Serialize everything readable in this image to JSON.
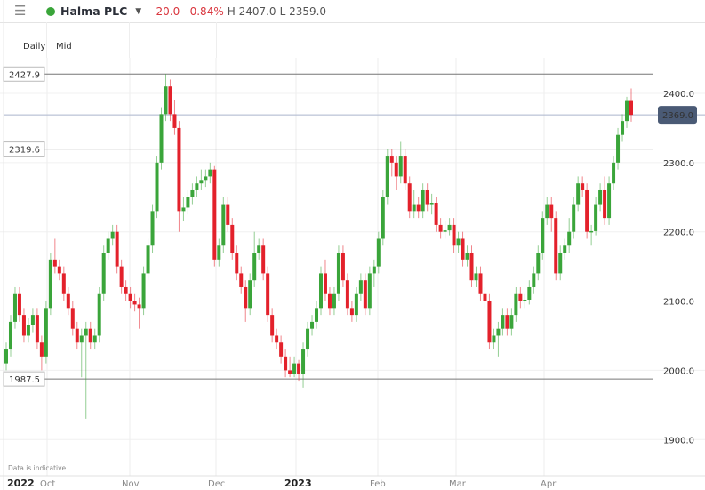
{
  "header": {
    "menu_icon": "hamburger-icon",
    "status_color": "#3aa53a",
    "instrument": "Halma PLC",
    "dropdown_icon": "caret-down-icon",
    "change": "-20.0",
    "change_pct": "-0.84%",
    "high": "H 2407.0",
    "low": "L 2359.0"
  },
  "toolbar": {
    "interval": "Daily",
    "price_type": "Mid"
  },
  "footer_note": "Data is indicative",
  "colors": {
    "up": "#3aa53a",
    "down": "#e3212b",
    "current_price_bg": "#4a5a75"
  },
  "chart_data": {
    "type": "candlestick",
    "y_ticks": [
      "2400.0",
      "2300.0",
      "2200.0",
      "2100.0",
      "2000.0",
      "1900.0"
    ],
    "ylim": [
      1870,
      2440
    ],
    "x_labels": [
      {
        "label": "2022",
        "bold": true
      },
      {
        "label": "Oct"
      },
      {
        "label": "Nov"
      },
      {
        "label": "Dec"
      },
      {
        "label": "2023",
        "bold": true
      },
      {
        "label": "Feb"
      },
      {
        "label": "Mar"
      },
      {
        "label": "Apr"
      }
    ],
    "horizontal_lines": [
      {
        "value": 2427.9,
        "label": "2427.9"
      },
      {
        "value": 2319.6,
        "label": "2319.6"
      },
      {
        "value": 1987.5,
        "label": "1987.5"
      }
    ],
    "current_price": {
      "value": 2369.0,
      "label": "2369.0"
    },
    "grid": true,
    "candles_ohlc": [
      [
        2010,
        2040,
        2000,
        2030
      ],
      [
        2030,
        2080,
        2020,
        2070
      ],
      [
        2070,
        2120,
        2060,
        2110
      ],
      [
        2110,
        2120,
        2070,
        2080
      ],
      [
        2080,
        2090,
        2040,
        2050
      ],
      [
        2050,
        2075,
        2040,
        2065
      ],
      [
        2065,
        2090,
        2055,
        2080
      ],
      [
        2080,
        2090,
        2030,
        2040
      ],
      [
        2040,
        2050,
        2000,
        2020
      ],
      [
        2020,
        2100,
        2010,
        2090
      ],
      [
        2090,
        2170,
        2080,
        2160
      ],
      [
        2160,
        2190,
        2140,
        2150
      ],
      [
        2150,
        2160,
        2130,
        2140
      ],
      [
        2140,
        2150,
        2100,
        2110
      ],
      [
        2110,
        2120,
        2080,
        2090
      ],
      [
        2090,
        2100,
        2050,
        2060
      ],
      [
        2060,
        2070,
        2030,
        2040
      ],
      [
        2040,
        2060,
        1990,
        2050
      ],
      [
        2050,
        2070,
        1930,
        2060
      ],
      [
        2060,
        2070,
        2030,
        2040
      ],
      [
        2040,
        2060,
        2030,
        2050
      ],
      [
        2050,
        2120,
        2040,
        2110
      ],
      [
        2110,
        2180,
        2100,
        2170
      ],
      [
        2170,
        2200,
        2160,
        2190
      ],
      [
        2190,
        2210,
        2180,
        2200
      ],
      [
        2200,
        2210,
        2140,
        2150
      ],
      [
        2150,
        2160,
        2110,
        2120
      ],
      [
        2120,
        2130,
        2100,
        2110
      ],
      [
        2110,
        2120,
        2090,
        2100
      ],
      [
        2100,
        2110,
        2085,
        2095
      ],
      [
        2095,
        2105,
        2060,
        2090
      ],
      [
        2090,
        2150,
        2080,
        2140
      ],
      [
        2140,
        2190,
        2130,
        2180
      ],
      [
        2180,
        2240,
        2170,
        2230
      ],
      [
        2230,
        2310,
        2220,
        2300
      ],
      [
        2300,
        2380,
        2290,
        2370
      ],
      [
        2370,
        2428,
        2360,
        2410
      ],
      [
        2410,
        2420,
        2360,
        2370
      ],
      [
        2370,
        2390,
        2340,
        2350
      ],
      [
        2350,
        2360,
        2200,
        2230
      ],
      [
        2230,
        2250,
        2215,
        2235
      ],
      [
        2235,
        2260,
        2225,
        2250
      ],
      [
        2250,
        2270,
        2240,
        2260
      ],
      [
        2260,
        2280,
        2250,
        2270
      ],
      [
        2270,
        2290,
        2260,
        2275
      ],
      [
        2275,
        2290,
        2265,
        2280
      ],
      [
        2280,
        2300,
        2270,
        2290
      ],
      [
        2290,
        2295,
        2150,
        2160
      ],
      [
        2160,
        2190,
        2150,
        2180
      ],
      [
        2180,
        2250,
        2170,
        2240
      ],
      [
        2240,
        2250,
        2200,
        2210
      ],
      [
        2210,
        2220,
        2160,
        2170
      ],
      [
        2170,
        2180,
        2130,
        2140
      ],
      [
        2140,
        2150,
        2110,
        2120
      ],
      [
        2120,
        2130,
        2070,
        2090
      ],
      [
        2090,
        2140,
        2080,
        2130
      ],
      [
        2130,
        2200,
        2120,
        2170
      ],
      [
        2170,
        2190,
        2160,
        2180
      ],
      [
        2180,
        2190,
        2130,
        2140
      ],
      [
        2140,
        2150,
        2070,
        2080
      ],
      [
        2080,
        2090,
        2040,
        2050
      ],
      [
        2050,
        2060,
        2030,
        2040
      ],
      [
        2040,
        2050,
        2010,
        2020
      ],
      [
        2020,
        2030,
        1990,
        2000
      ],
      [
        2000,
        2020,
        1990,
        1995
      ],
      [
        1995,
        2020,
        1990,
        2010
      ],
      [
        2010,
        2015,
        1985,
        1995
      ],
      [
        1995,
        2040,
        1975,
        2030
      ],
      [
        2030,
        2070,
        2020,
        2060
      ],
      [
        2060,
        2080,
        2050,
        2070
      ],
      [
        2070,
        2100,
        2060,
        2090
      ],
      [
        2090,
        2150,
        2080,
        2140
      ],
      [
        2140,
        2160,
        2100,
        2110
      ],
      [
        2110,
        2120,
        2080,
        2090
      ],
      [
        2090,
        2120,
        2080,
        2110
      ],
      [
        2110,
        2180,
        2100,
        2170
      ],
      [
        2170,
        2180,
        2120,
        2130
      ],
      [
        2130,
        2140,
        2080,
        2090
      ],
      [
        2090,
        2100,
        2070,
        2080
      ],
      [
        2080,
        2120,
        2070,
        2110
      ],
      [
        2110,
        2140,
        2100,
        2130
      ],
      [
        2130,
        2140,
        2080,
        2090
      ],
      [
        2090,
        2150,
        2080,
        2140
      ],
      [
        2140,
        2160,
        2120,
        2150
      ],
      [
        2150,
        2200,
        2140,
        2190
      ],
      [
        2190,
        2260,
        2180,
        2250
      ],
      [
        2250,
        2320,
        2240,
        2310
      ],
      [
        2310,
        2320,
        2280,
        2300
      ],
      [
        2300,
        2310,
        2260,
        2280
      ],
      [
        2280,
        2330,
        2270,
        2310
      ],
      [
        2310,
        2320,
        2260,
        2270
      ],
      [
        2270,
        2280,
        2220,
        2230
      ],
      [
        2230,
        2260,
        2220,
        2240
      ],
      [
        2240,
        2250,
        2220,
        2230
      ],
      [
        2230,
        2270,
        2220,
        2260
      ],
      [
        2260,
        2270,
        2230,
        2240
      ],
      [
        2240,
        2255,
        2225,
        2242
      ],
      [
        2242,
        2250,
        2200,
        2210
      ],
      [
        2210,
        2220,
        2190,
        2200
      ],
      [
        2200,
        2215,
        2190,
        2202
      ],
      [
        2202,
        2220,
        2195,
        2210
      ],
      [
        2210,
        2220,
        2170,
        2180
      ],
      [
        2180,
        2200,
        2170,
        2190
      ],
      [
        2190,
        2200,
        2150,
        2160
      ],
      [
        2160,
        2180,
        2150,
        2170
      ],
      [
        2170,
        2180,
        2120,
        2130
      ],
      [
        2130,
        2150,
        2120,
        2140
      ],
      [
        2140,
        2150,
        2100,
        2110
      ],
      [
        2110,
        2120,
        2090,
        2100
      ],
      [
        2100,
        2110,
        2030,
        2040
      ],
      [
        2040,
        2060,
        2030,
        2050
      ],
      [
        2050,
        2070,
        2020,
        2060
      ],
      [
        2060,
        2090,
        2050,
        2080
      ],
      [
        2080,
        2090,
        2050,
        2060
      ],
      [
        2060,
        2090,
        2050,
        2080
      ],
      [
        2080,
        2120,
        2070,
        2110
      ],
      [
        2110,
        2120,
        2090,
        2100
      ],
      [
        2100,
        2110,
        2090,
        2102
      ],
      [
        2102,
        2130,
        2095,
        2120
      ],
      [
        2120,
        2150,
        2110,
        2140
      ],
      [
        2140,
        2180,
        2130,
        2170
      ],
      [
        2170,
        2230,
        2160,
        2220
      ],
      [
        2220,
        2250,
        2210,
        2240
      ],
      [
        2240,
        2250,
        2200,
        2220
      ],
      [
        2220,
        2230,
        2130,
        2140
      ],
      [
        2140,
        2180,
        2130,
        2170
      ],
      [
        2170,
        2190,
        2160,
        2180
      ],
      [
        2180,
        2220,
        2170,
        2200
      ],
      [
        2200,
        2250,
        2190,
        2240
      ],
      [
        2240,
        2280,
        2230,
        2270
      ],
      [
        2270,
        2280,
        2250,
        2260
      ],
      [
        2260,
        2270,
        2190,
        2200
      ],
      [
        2200,
        2210,
        2180,
        2201
      ],
      [
        2201,
        2250,
        2195,
        2240
      ],
      [
        2240,
        2270,
        2230,
        2260
      ],
      [
        2260,
        2280,
        2210,
        2220
      ],
      [
        2220,
        2280,
        2210,
        2270
      ],
      [
        2270,
        2310,
        2260,
        2300
      ],
      [
        2300,
        2350,
        2290,
        2340
      ],
      [
        2340,
        2370,
        2330,
        2360
      ],
      [
        2360,
        2395,
        2350,
        2389
      ],
      [
        2389,
        2407,
        2359,
        2369
      ]
    ]
  }
}
